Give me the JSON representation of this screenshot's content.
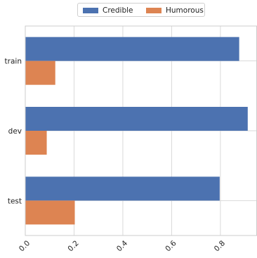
{
  "chart_data": {
    "type": "bar",
    "orientation": "horizontal",
    "categories": [
      "train",
      "dev",
      "test"
    ],
    "series": [
      {
        "name": "Credible",
        "values": [
          0.877,
          0.912,
          0.797
        ],
        "color": "#4c72b0"
      },
      {
        "name": "Humorous",
        "values": [
          0.123,
          0.088,
          0.203
        ],
        "color": "#dd8452"
      }
    ],
    "xlim": [
      0.0,
      0.95
    ],
    "xticks": [
      0.0,
      0.2,
      0.4,
      0.6,
      0.8
    ],
    "xtick_labels": [
      "0.0",
      "0.2",
      "0.4",
      "0.6",
      "0.8"
    ],
    "xtick_rotation": 45,
    "grid": true,
    "legend_position": "top-center",
    "title": "",
    "xlabel": "",
    "ylabel": ""
  }
}
